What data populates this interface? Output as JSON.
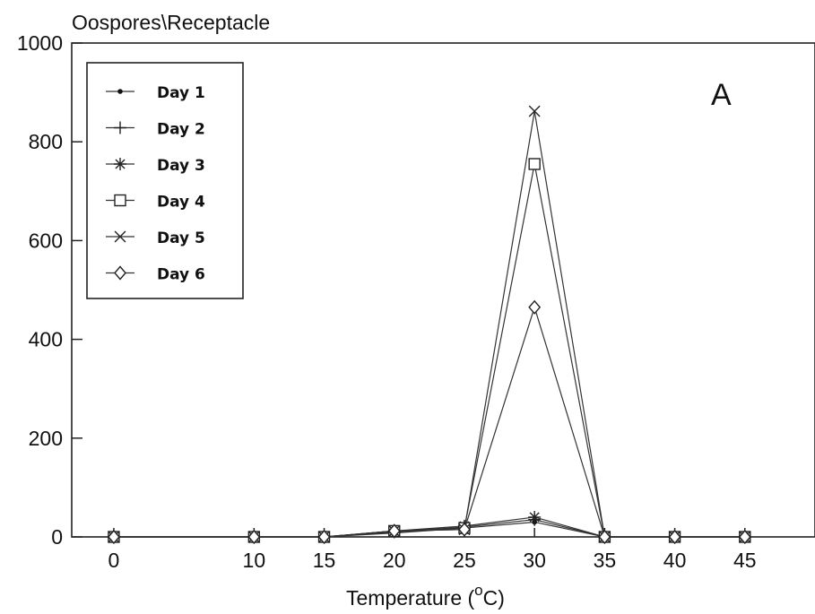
{
  "chart_data": {
    "type": "line",
    "ylabel": "Oospores\\Receptacle",
    "xlabel": "Temperature (",
    "xlabel_degree": "o",
    "xlabel_unit": "C)",
    "panel_label": "A",
    "x": [
      0,
      10,
      15,
      20,
      25,
      30,
      35,
      40,
      45
    ],
    "x_tick_labels": [
      "0",
      "10",
      "15",
      "20",
      "25",
      "30",
      "35",
      "40",
      "45"
    ],
    "y_ticks": [
      0,
      200,
      400,
      600,
      800,
      1000
    ],
    "y_tick_labels": [
      "0",
      "200",
      "400",
      "600",
      "800",
      "1000"
    ],
    "xlim": [
      -3,
      50
    ],
    "ylim": [
      0,
      1000
    ],
    "grid": false,
    "legend_position": "top-left",
    "series": [
      {
        "name": "Day 1",
        "marker": "dot",
        "values": [
          0,
          0,
          0,
          8,
          18,
          30,
          0,
          0,
          0
        ]
      },
      {
        "name": "Day 2",
        "marker": "plus",
        "values": [
          0,
          0,
          0,
          10,
          20,
          35,
          0,
          0,
          0
        ]
      },
      {
        "name": "Day 3",
        "marker": "asterisk",
        "values": [
          0,
          0,
          0,
          12,
          22,
          40,
          0,
          0,
          0
        ]
      },
      {
        "name": "Day 4",
        "marker": "square",
        "values": [
          0,
          0,
          0,
          12,
          18,
          755,
          0,
          0,
          0
        ]
      },
      {
        "name": "Day 5",
        "marker": "x",
        "values": [
          0,
          0,
          0,
          12,
          15,
          862,
          0,
          0,
          0
        ]
      },
      {
        "name": "Day 6",
        "marker": "diamond",
        "values": [
          0,
          0,
          0,
          12,
          15,
          465,
          0,
          0,
          0
        ]
      }
    ]
  }
}
